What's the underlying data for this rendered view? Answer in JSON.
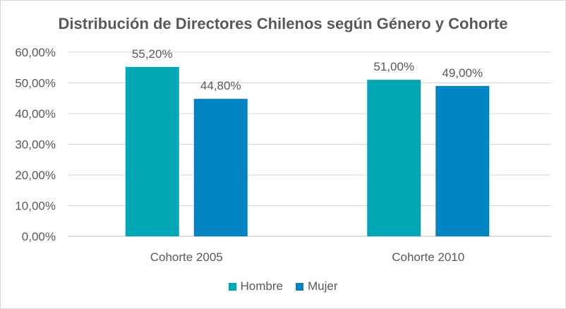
{
  "chart_data": {
    "type": "bar",
    "title": "Distribución de Directores Chilenos según Género y Cohorte",
    "xlabel": "",
    "ylabel": "",
    "categories": [
      "Cohorte 2005",
      "Cohorte 2010"
    ],
    "series": [
      {
        "name": "Hombre",
        "values": [
          55.2,
          51.0
        ],
        "labels": [
          "55,20%",
          "51,00%"
        ],
        "color": "#00a6b4"
      },
      {
        "name": "Mujer",
        "values": [
          44.8,
          49.0
        ],
        "labels": [
          "44,80%",
          "49,00%"
        ],
        "color": "#0084c2"
      }
    ],
    "ylim": [
      0,
      60
    ],
    "yticks": [
      {
        "value": 0,
        "label": "0,00%"
      },
      {
        "value": 10,
        "label": "10,00%"
      },
      {
        "value": 20,
        "label": "20,00%"
      },
      {
        "value": 30,
        "label": "30,00%"
      },
      {
        "value": 40,
        "label": "40,00%"
      },
      {
        "value": 50,
        "label": "50,00%"
      },
      {
        "value": 60,
        "label": "60,00%"
      }
    ],
    "grid": true,
    "legend_position": "bottom"
  }
}
